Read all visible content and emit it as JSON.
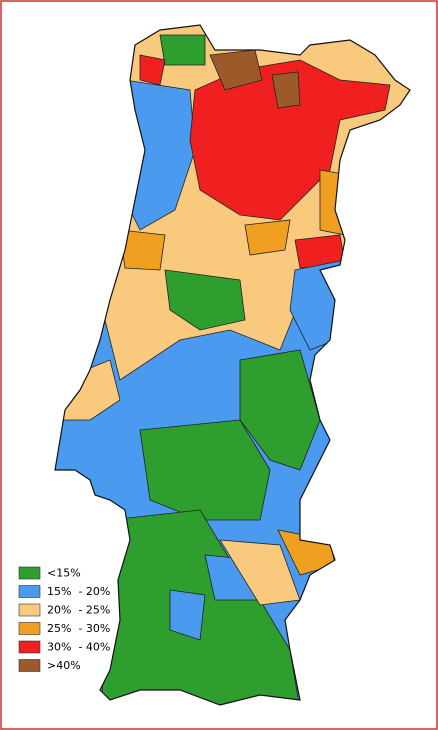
{
  "legend": {
    "items": [
      {
        "label": "<15%",
        "color": "#2e9e2e"
      },
      {
        "label": "15%  - 20%",
        "color": "#4a9af0"
      },
      {
        "label": "20%  - 25%",
        "color": "#f9c97e"
      },
      {
        "label": "25%  - 30%",
        "color": "#f0a020"
      },
      {
        "label": "30%  - 40%",
        "color": "#f02020"
      },
      {
        "label": ">40%",
        "color": "#9c5a2a"
      }
    ]
  }
}
